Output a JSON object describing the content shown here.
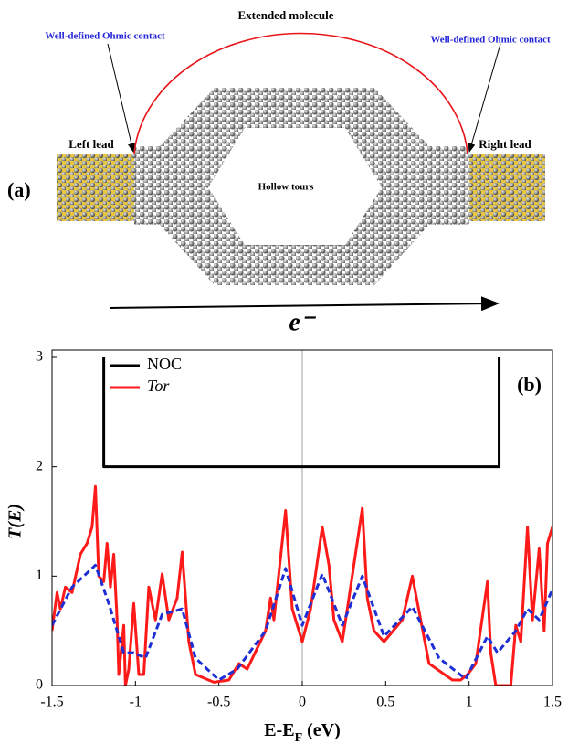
{
  "diagram": {
    "panel_label": "(a)",
    "top_label": "Extended molecule",
    "left_contact": "Well-defined Ohmic contact",
    "right_contact": "Well-defined Ohmic contact",
    "left_lead": "Left lead",
    "right_lead": "Right lead",
    "center_label": "Hollow tours",
    "arrow_label": "e⁻"
  },
  "chart_data": {
    "type": "line",
    "panel_label": "(b)",
    "ylabel": "T(E)",
    "xlabel": "E-E",
    "xlabel_sub": "F",
    "xlabel_suffix": " (eV)",
    "xlim": [
      -1.5,
      1.5
    ],
    "xticks": [
      -1.5,
      -1,
      -0.5,
      0,
      0.5,
      1,
      1.5
    ],
    "ylim": [
      0,
      3
    ],
    "yticks": [
      0,
      1,
      2,
      3
    ],
    "vline": 0,
    "legend": "upper left",
    "series": [
      {
        "name": "NOC",
        "color": "#000000",
        "x": [
          -1.19,
          -1.19,
          1.18,
          1.18
        ],
        "values": [
          3,
          2,
          2,
          3
        ]
      },
      {
        "name": "Tor",
        "color": "#ff1a1a",
        "x": [
          -1.5,
          -1.47,
          -1.45,
          -1.42,
          -1.38,
          -1.33,
          -1.29,
          -1.26,
          -1.24,
          -1.22,
          -1.19,
          -1.17,
          -1.15,
          -1.13,
          -1.11,
          -1.1,
          -1.07,
          -1.06,
          -1.04,
          -1.01,
          -0.98,
          -0.95,
          -0.92,
          -0.88,
          -0.84,
          -0.8,
          -0.75,
          -0.72,
          -0.68,
          -0.64,
          -0.53,
          -0.44,
          -0.38,
          -0.33,
          -0.22,
          -0.19,
          -0.17,
          -0.1,
          -0.06,
          0,
          0.05,
          0.12,
          0.16,
          0.19,
          0.24,
          0.28,
          0.36,
          0.39,
          0.43,
          0.49,
          0.6,
          0.66,
          0.71,
          0.76,
          0.9,
          0.95,
          0.99,
          1.04,
          1.11,
          1.13,
          1.16,
          1.25,
          1.28,
          1.31,
          1.35,
          1.38,
          1.42,
          1.45,
          1.47,
          1.5
        ],
        "values": [
          0.5,
          0.85,
          0.7,
          0.9,
          0.85,
          1.2,
          1.3,
          1.45,
          1.82,
          1.0,
          0.95,
          1.3,
          0.9,
          1.2,
          0.6,
          0.1,
          0.55,
          0.0,
          0.15,
          0.75,
          0.1,
          0.1,
          0.9,
          0.6,
          1.02,
          0.6,
          0.8,
          1.22,
          0.4,
          0.1,
          0.03,
          0.05,
          0.2,
          0.15,
          0.5,
          0.8,
          0.6,
          1.6,
          0.7,
          0.4,
          0.7,
          1.45,
          1.1,
          0.6,
          0.4,
          0.8,
          1.62,
          0.8,
          0.5,
          0.4,
          0.6,
          1.0,
          0.6,
          0.2,
          0.05,
          0.05,
          0.1,
          0.2,
          0.95,
          0.3,
          0.0,
          0.0,
          0.55,
          0.4,
          1.45,
          0.6,
          1.25,
          0.5,
          1.3,
          1.45
        ]
      },
      {
        "color": "#1f2fd6",
        "dashed": true,
        "x": [
          -1.5,
          -1.38,
          -1.24,
          -1.16,
          -1.07,
          -1.01,
          -0.94,
          -0.84,
          -0.72,
          -0.64,
          -0.5,
          -0.39,
          -0.22,
          -0.1,
          0,
          0.12,
          0.24,
          0.36,
          0.49,
          0.66,
          0.82,
          0.98,
          1.11,
          1.17,
          1.28,
          1.35,
          1.42,
          1.5
        ],
        "values": [
          0.55,
          0.9,
          1.1,
          0.75,
          0.3,
          0.3,
          0.25,
          0.65,
          0.7,
          0.25,
          0.05,
          0.15,
          0.5,
          1.07,
          0.55,
          1.02,
          0.55,
          1.0,
          0.45,
          0.72,
          0.25,
          0.06,
          0.45,
          0.3,
          0.5,
          0.7,
          0.6,
          0.88
        ]
      }
    ]
  }
}
